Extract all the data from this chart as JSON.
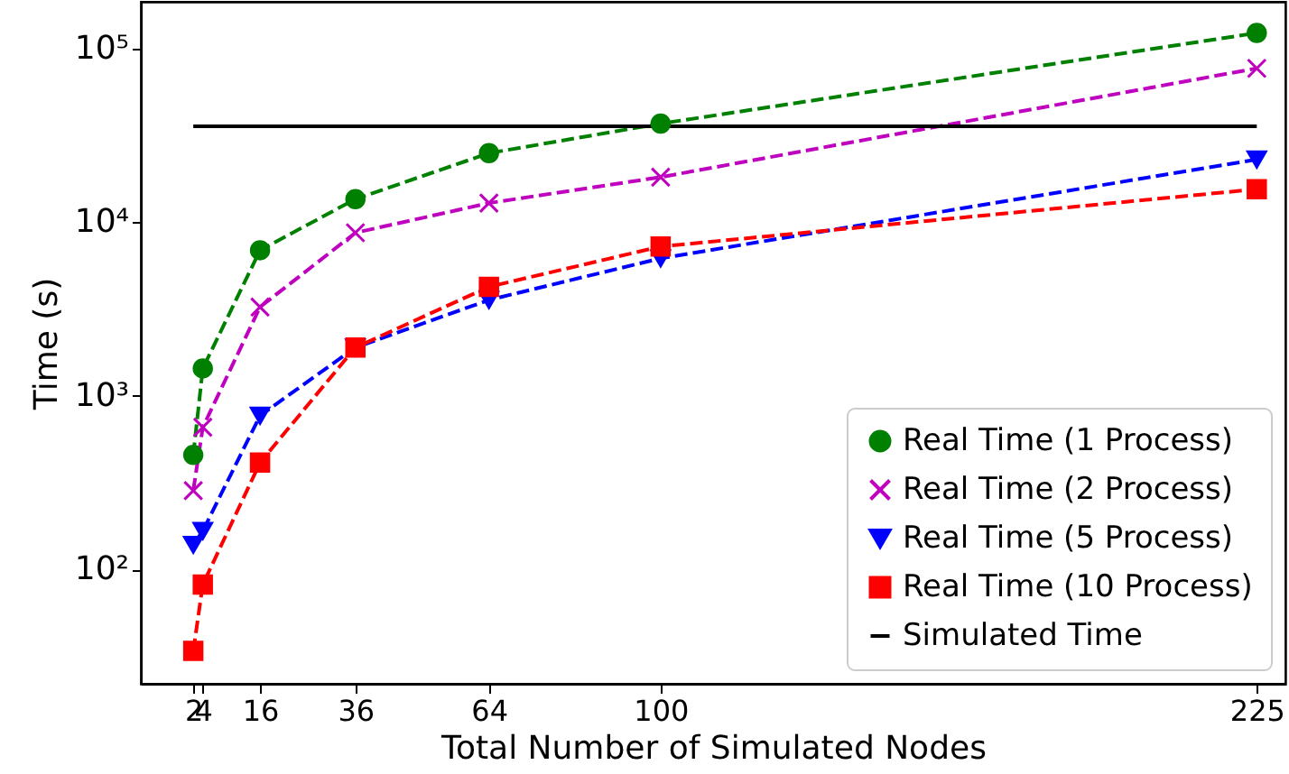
{
  "chart_data": {
    "type": "line",
    "xlabel": "Total Number of Simulated Nodes",
    "ylabel": "Time (s)",
    "x": [
      2,
      4,
      16,
      36,
      64,
      100,
      225
    ],
    "xlim": [
      -9,
      231
    ],
    "xticks": [
      2,
      4,
      16,
      36,
      64,
      100,
      225
    ],
    "ylim": [
      22,
      186000
    ],
    "yticks": [
      {
        "value": 100,
        "label": "10²"
      },
      {
        "value": 1000,
        "label": "10³"
      },
      {
        "value": 10000,
        "label": "10⁴"
      },
      {
        "value": 100000,
        "label": "10⁵"
      }
    ],
    "log": "y",
    "grid": false,
    "legend": "bottom right",
    "series": [
      {
        "name": "Real Time (1 Process)",
        "color": "#008000",
        "marker": "circle",
        "line_style": "dashed",
        "values": [
          457,
          1440,
          6900,
          13600,
          25000,
          37000,
          123000
        ]
      },
      {
        "name": "Real Time (2 Process)",
        "color": "#bf00bf",
        "marker": "cross",
        "line_style": "dashed",
        "values": [
          285,
          660,
          3250,
          8700,
          12900,
          18200,
          77000
        ]
      },
      {
        "name": "Real Time (5 Process)",
        "color": "#0000ff",
        "marker": "triangle",
        "line_style": "dashed",
        "values": [
          139,
          167,
          770,
          1900,
          3570,
          6200,
          23000
        ]
      },
      {
        "name": "Real Time (10 Process)",
        "color": "#ff0000",
        "marker": "square",
        "line_style": "dashed",
        "values": [
          34,
          82,
          413,
          1900,
          4250,
          7250,
          15500
        ]
      },
      {
        "name": "Simulated Time",
        "color": "#000000",
        "marker": "none",
        "line_style": "solid",
        "x": [
          2,
          225
        ],
        "values": [
          35700,
          35700
        ]
      }
    ]
  }
}
